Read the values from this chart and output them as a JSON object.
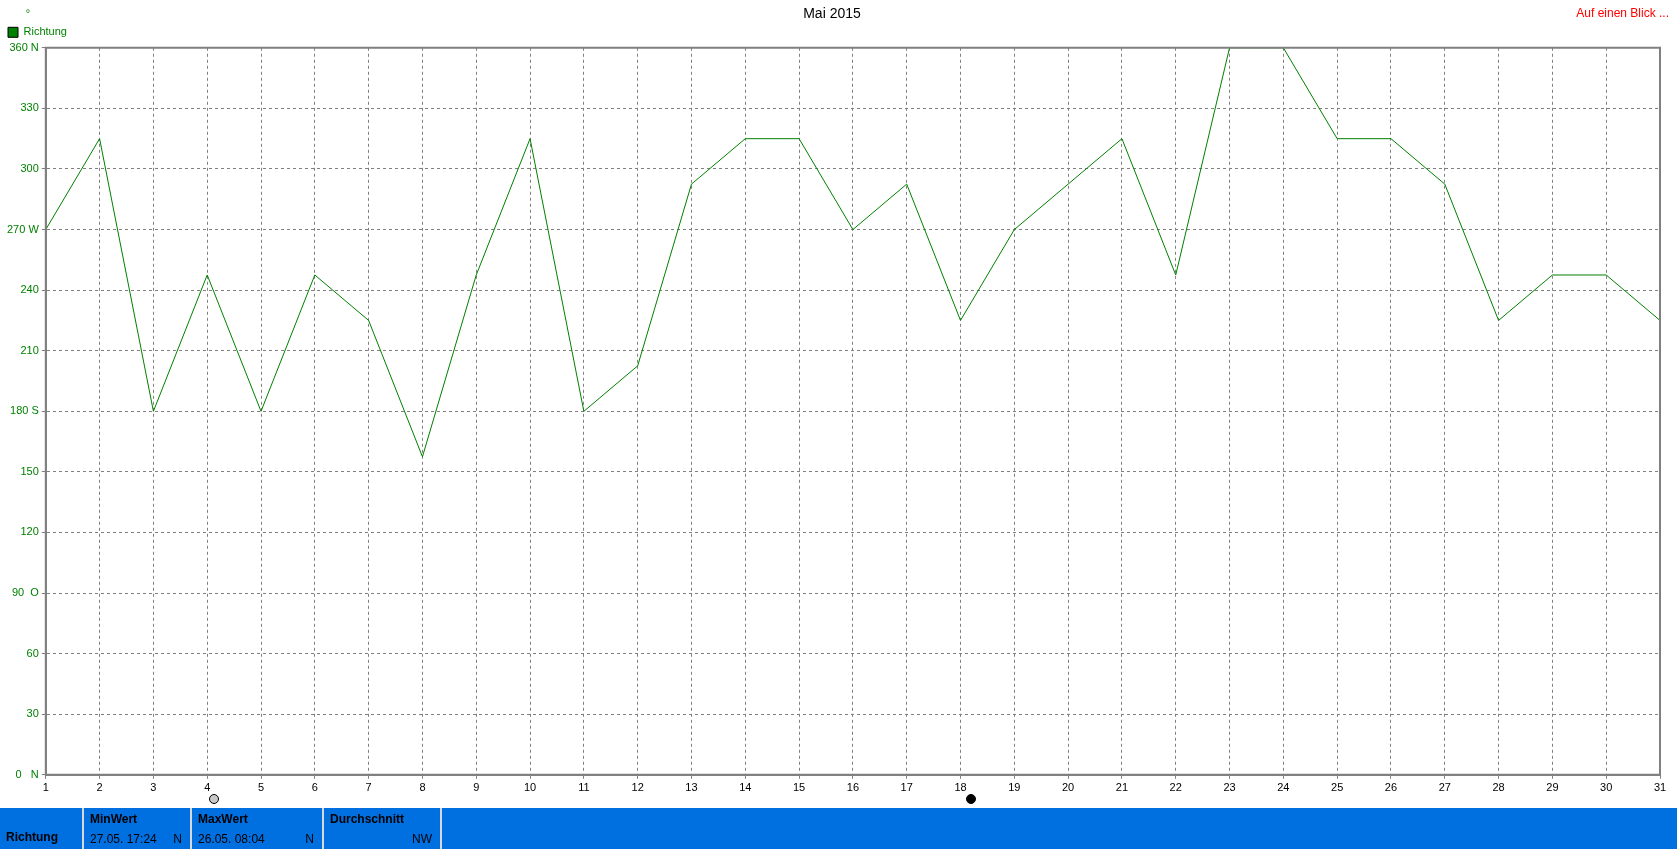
{
  "chart_data": {
    "type": "line",
    "title": "Mai 2015",
    "ylabel": "°",
    "x": [
      1,
      2,
      3,
      4,
      5,
      6,
      7,
      8,
      9,
      10,
      11,
      12,
      13,
      14,
      15,
      16,
      17,
      18,
      19,
      20,
      21,
      22,
      23,
      24,
      25,
      26,
      27,
      28,
      29,
      30,
      31
    ],
    "series": [
      {
        "name": "Richtung",
        "color": "#008000",
        "values": [
          270,
          315,
          180,
          247.5,
          180,
          247.5,
          225,
          157.5,
          247.5,
          315,
          180,
          202.5,
          292.5,
          315,
          315,
          270,
          292.5,
          225,
          270,
          292.5,
          315,
          247.5,
          360,
          360,
          315,
          315,
          292.5,
          225,
          247.5,
          247.5,
          225
        ]
      }
    ],
    "xlim": [
      1,
      31
    ],
    "xticks": [
      1,
      2,
      3,
      4,
      5,
      6,
      7,
      8,
      9,
      10,
      11,
      12,
      13,
      14,
      15,
      16,
      17,
      18,
      19,
      20,
      21,
      22,
      23,
      24,
      25,
      26,
      27,
      28,
      29,
      30,
      31
    ],
    "ylim": [
      0,
      360
    ],
    "yticks": [
      {
        "value": 0,
        "label": "0   N"
      },
      30,
      60,
      {
        "value": 90,
        "label": "90  O"
      },
      120,
      150,
      {
        "value": 180,
        "label": "180 S"
      },
      210,
      240,
      {
        "value": 270,
        "label": "270 W"
      },
      300,
      330,
      {
        "value": 360,
        "label": "360 N"
      }
    ],
    "grid": true,
    "legend": "top left",
    "marker": "none",
    "line_style": "solid",
    "annotations": [
      "Auf einen Blick ...",
      "MinWert",
      "27.05.  17:24",
      "N",
      "MaxWert",
      "26.05.  08:04",
      "N",
      "Durchschnitt",
      "NW"
    ]
  }
}
